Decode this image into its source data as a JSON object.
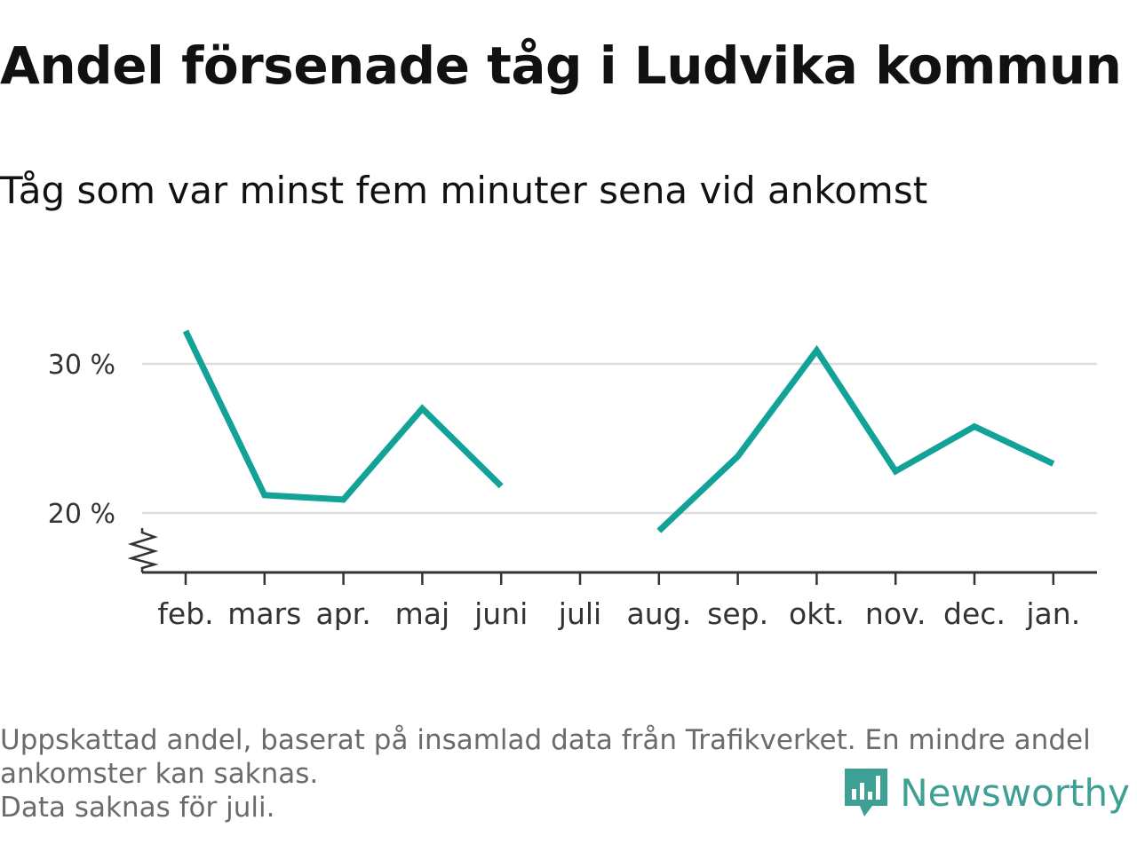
{
  "title": "Andel försenade tåg i Ludvika kommun",
  "subtitle": "Tåg som var minst fem minuter sena vid ankomst",
  "footer": {
    "line1": "Uppskattad andel, baserat på insamlad data från Trafikverket. En mindre andel",
    "line2": "ankomster kan saknas.",
    "line3": "Data saknas för juli."
  },
  "brand": {
    "name": "Newsworthy",
    "icon": "newsworthy-logo-icon",
    "color": "#3e9f94"
  },
  "colors": {
    "line": "#12a297",
    "grid": "#dddddd",
    "axis": "#333333"
  },
  "chart_data": {
    "type": "line",
    "title": "Andel försenade tåg i Ludvika kommun",
    "subtitle": "Tåg som var minst fem minuter sena vid ankomst",
    "categories": [
      "feb.",
      "mars",
      "apr.",
      "maj",
      "juni",
      "juli",
      "aug.",
      "sep.",
      "okt.",
      "nov.",
      "dec.",
      "jan."
    ],
    "values": [
      32.2,
      21.2,
      20.9,
      27.0,
      21.8,
      null,
      18.8,
      23.8,
      30.9,
      22.8,
      25.8,
      23.3
    ],
    "yticks": [
      20,
      30
    ],
    "ytick_labels": [
      "20 %",
      "30 %"
    ],
    "ylim": [
      16,
      32.2
    ],
    "axis_break": true,
    "grid": true,
    "legend": "none"
  }
}
